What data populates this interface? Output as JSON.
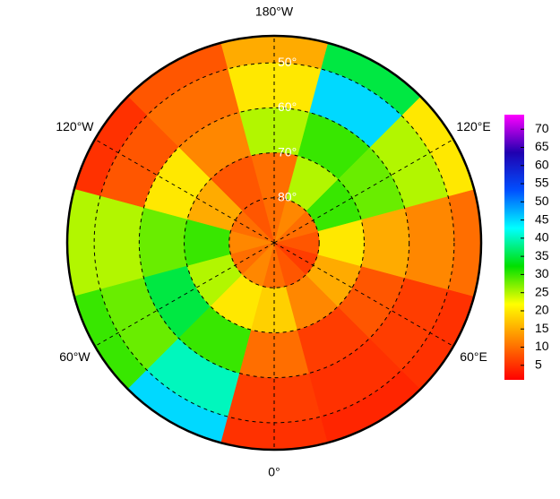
{
  "chart_data": {
    "type": "polar-heatmap",
    "lat_edges": [
      44,
      50,
      60,
      70,
      80,
      90
    ],
    "lon_edges": [
      -15,
      15,
      45,
      75,
      105,
      135,
      165,
      195,
      225,
      255,
      285,
      315,
      345
    ],
    "values": [
      [
        5,
        4,
        5,
        10,
        20,
        35,
        15,
        8,
        5,
        25,
        30,
        45
      ],
      [
        6,
        5,
        6,
        12,
        25,
        45,
        20,
        10,
        8,
        25,
        28,
        40
      ],
      [
        10,
        6,
        8,
        15,
        28,
        30,
        25,
        12,
        20,
        28,
        35,
        30
      ],
      [
        18,
        12,
        15,
        20,
        30,
        25,
        10,
        8,
        15,
        30,
        25,
        20
      ],
      [
        10,
        8,
        6,
        8,
        10,
        12,
        10,
        8,
        10,
        12,
        10,
        12
      ]
    ],
    "colormap": [
      "#ff0000",
      "#ff8000",
      "#ffff00",
      "#00e000",
      "#00ffff",
      "#0050ff",
      "#2000b0",
      "#ff00ff"
    ],
    "clim": [
      1,
      74
    ],
    "cticks": [
      5,
      10,
      15,
      20,
      25,
      30,
      35,
      40,
      45,
      50,
      55,
      60,
      65,
      70
    ],
    "lonticks": [
      {
        "value": 180,
        "label": "180°W"
      },
      {
        "value": -120,
        "label": "120°W"
      },
      {
        "value": -60,
        "label": "60°W"
      },
      {
        "value": 0,
        "label": "0°"
      },
      {
        "value": 60,
        "label": "60°E"
      },
      {
        "value": 120,
        "label": "120°E"
      }
    ],
    "latticks": [
      {
        "value": 50,
        "label": "50°"
      },
      {
        "value": 60,
        "label": "60°"
      },
      {
        "value": 70,
        "label": "70°"
      },
      {
        "value": 80,
        "label": "80°"
      }
    ]
  }
}
